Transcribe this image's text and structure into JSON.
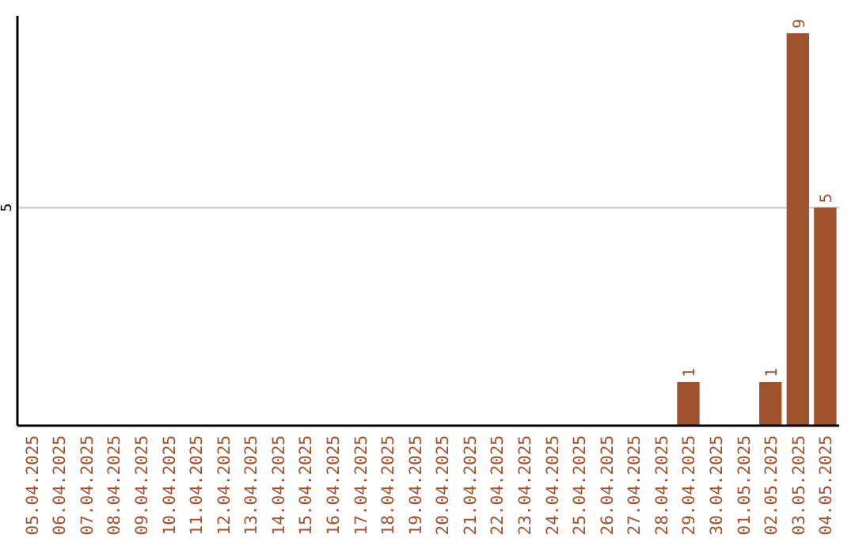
{
  "chart_data": {
    "type": "bar",
    "categories": [
      "05.04.2025",
      "06.04.2025",
      "07.04.2025",
      "08.04.2025",
      "09.04.2025",
      "10.04.2025",
      "11.04.2025",
      "12.04.2025",
      "13.04.2025",
      "14.04.2025",
      "15.04.2025",
      "16.04.2025",
      "17.04.2025",
      "18.04.2025",
      "19.04.2025",
      "20.04.2025",
      "21.04.2025",
      "22.04.2025",
      "23.04.2025",
      "24.04.2025",
      "25.04.2025",
      "26.04.2025",
      "27.04.2025",
      "28.04.2025",
      "29.04.2025",
      "30.04.2025",
      "01.05.2025",
      "02.05.2025",
      "03.05.2025",
      "04.05.2025"
    ],
    "values": [
      null,
      null,
      null,
      null,
      null,
      null,
      null,
      null,
      null,
      null,
      null,
      null,
      null,
      null,
      null,
      null,
      null,
      null,
      null,
      null,
      null,
      null,
      null,
      null,
      1,
      null,
      null,
      1,
      9,
      5
    ],
    "data_labels": true,
    "color": "#a0522d",
    "ylim": [
      0,
      9.4
    ],
    "yticks": [
      5
    ],
    "grid": "y"
  }
}
